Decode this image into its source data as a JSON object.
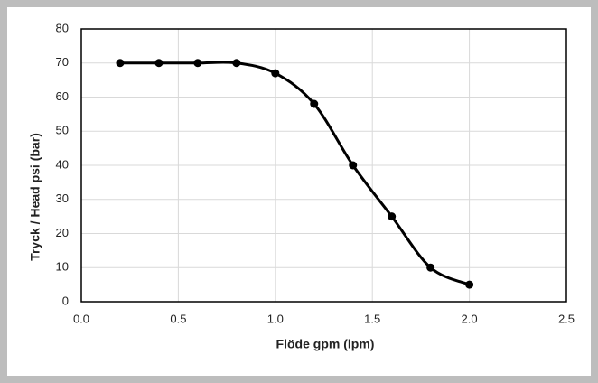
{
  "chart_data": {
    "type": "scatter",
    "x_label": "Flöde gpm (lpm)",
    "y_label": "Tryck / Head psi (bar)",
    "x": [
      0.2,
      0.4,
      0.6,
      0.8,
      1.0,
      1.2,
      1.4,
      1.6,
      1.8,
      2.0
    ],
    "values": [
      70,
      70,
      70,
      70,
      67,
      58,
      40,
      25,
      10,
      5
    ],
    "color": "#000000",
    "smooth_line": true,
    "xlim": [
      0,
      2.5
    ],
    "xticks": [
      {
        "value": 0,
        "label": "0.0"
      },
      0.5,
      {
        "value": 1,
        "label": "1.0"
      },
      1.5,
      {
        "value": 2,
        "label": "2.0"
      },
      2.5
    ],
    "ylim": [
      0,
      80
    ],
    "yticks": [
      0,
      10,
      20,
      30,
      40,
      50,
      60,
      70,
      80
    ],
    "grid": true
  }
}
